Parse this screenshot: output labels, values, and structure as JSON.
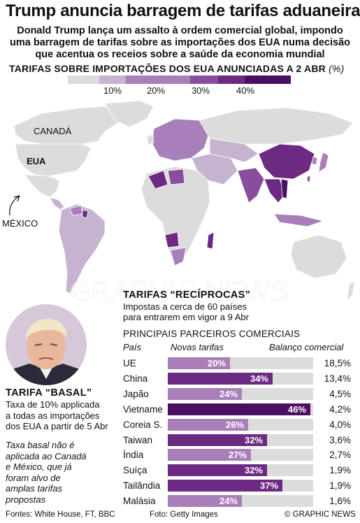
{
  "title": "Trump anuncia barragem de tarifas aduaneiras",
  "subtitle": [
    "Donald Trump lança um assalto à ordem comercial global, impondo",
    "uma barragem de tarifas sobre as importações dos EUA numa decisão",
    "que acentua os receios sobre a saúde da economia mundial"
  ],
  "scale": {
    "title": "TARIFAS SOBRE IMPORTAÇÕES DOS EUA ANUNCIADAS A 2 ABR",
    "unit": "(%)",
    "labels": [
      "10%",
      "20%",
      "30%",
      "40%"
    ],
    "colors": [
      "#dcdcdc",
      "#c6b3d0",
      "#a87fb8",
      "#8a4c9c",
      "#6c2a82",
      "#4b0f62"
    ]
  },
  "map": {
    "labels": {
      "canada": "CANADÁ",
      "usa": "EUA",
      "mexico": "MÉXICO"
    },
    "land_color": "#dcdcdc",
    "watermark": "GRAPHIC NEWS"
  },
  "reciprocal": {
    "title": "TARIFAS “RECÍPROCAS”",
    "desc": [
      "Impostas a cerca de 60 países",
      "para entrarem em vigor a 9 Abr"
    ],
    "partners_title": "PRINCIPAIS PARCEIROS COMERCIAIS"
  },
  "chart_data": {
    "type": "bar",
    "title": "PRINCIPAIS PARCEIROS COMERCIAIS",
    "columns": [
      "País",
      "Novas tarifas",
      "Balanço comercial"
    ],
    "categories": [
      "UE",
      "China",
      "Japão",
      "Vietname",
      "Coreia S.",
      "Taiwan",
      "Índia",
      "Suíça",
      "Tailândia",
      "Malásia"
    ],
    "values": [
      20,
      34,
      24,
      46,
      26,
      32,
      27,
      32,
      37,
      24
    ],
    "value_labels": [
      "20%",
      "34%",
      "24%",
      "46%",
      "26%",
      "32%",
      "27%",
      "32%",
      "37%",
      "24%"
    ],
    "trade_balance": [
      "18,5%",
      "13,4%",
      "4,5%",
      "4,2%",
      "4,0%",
      "3,6%",
      "2,7%",
      "1,9%",
      "1,9%",
      "1,6%"
    ],
    "xlim": [
      0,
      47
    ]
  },
  "basal": {
    "title": "TARIFA “BASAL”",
    "desc": [
      "Taxa de 10% applicada",
      "a todas as importações",
      "dos EUA a partir de 5 Abr"
    ],
    "note": [
      "Taxa basal não é",
      "aplicada ao Canadá",
      "e México, que já",
      "foram alvo de",
      "amplas tarifas",
      "propostas"
    ]
  },
  "footer": {
    "sources": "Fontes: White House, FT, BBC",
    "photo": "Foto: Getty Images",
    "credit": "© GRAPHIC NEWS"
  }
}
